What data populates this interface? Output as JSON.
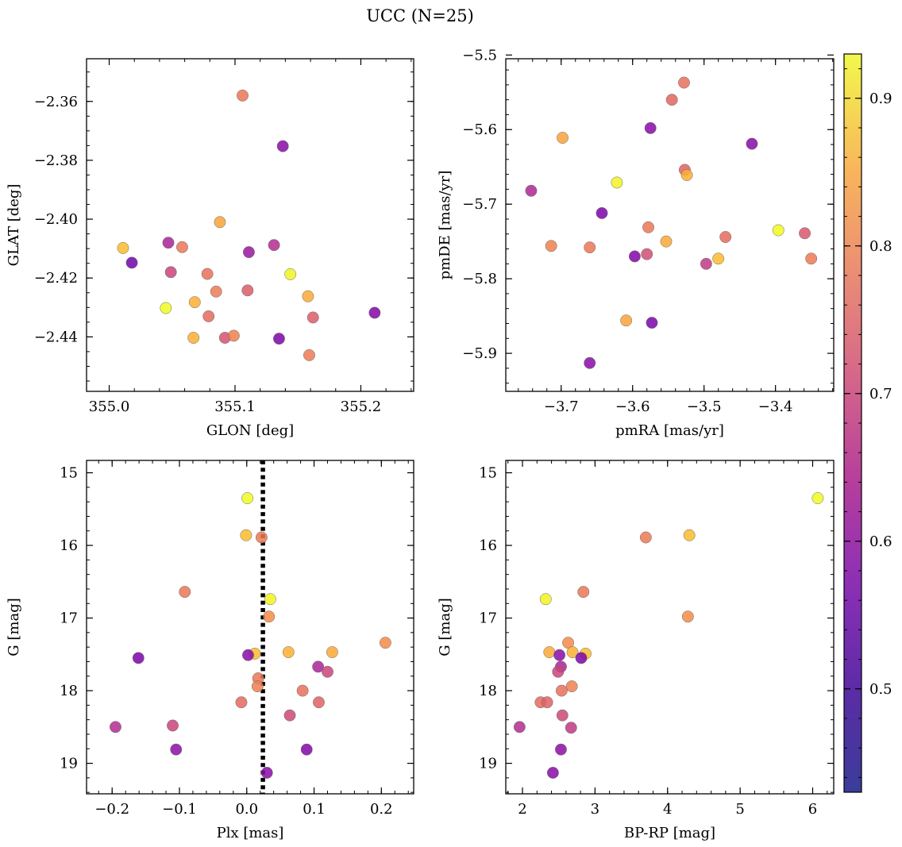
{
  "figure": {
    "title": "UCC (N=25)",
    "colormap": "plasma",
    "colorbar": {
      "vmin": 0.43,
      "vmax": 0.93,
      "ticks": [
        "0.5",
        "0.6",
        "0.7",
        "0.8",
        "0.9"
      ],
      "tick_values": [
        0.5,
        0.6,
        0.7,
        0.8,
        0.9
      ]
    }
  },
  "chart_data": [
    {
      "type": "scatter",
      "panel": "top-left",
      "xlabel": "GLON [deg]",
      "ylabel": "GLAT [deg]",
      "xlim": [
        354.982,
        355.242
      ],
      "ylim": [
        -2.4585,
        -2.3455
      ],
      "y_inverted": false,
      "xticks": [
        355.0,
        355.1,
        355.2
      ],
      "xtick_labels": [
        "355.0",
        "355.1",
        "355.2"
      ],
      "yticks": [
        -2.36,
        -2.38,
        -2.4,
        -2.42,
        -2.44
      ],
      "ytick_labels": [
        "−2.36",
        "−2.38",
        "−2.40",
        "−2.42",
        "−2.44"
      ],
      "x_minor_step": 0.02,
      "y_minor_step": 0.005,
      "points": [
        {
          "x": 355.106,
          "y": -2.358,
          "c": 0.72
        },
        {
          "x": 355.138,
          "y": -2.3752,
          "c": 0.49
        },
        {
          "x": 355.088,
          "y": -2.401,
          "c": 0.8
        },
        {
          "x": 355.011,
          "y": -2.4098,
          "c": 0.84
        },
        {
          "x": 355.018,
          "y": -2.4148,
          "c": 0.45
        },
        {
          "x": 355.047,
          "y": -2.408,
          "c": 0.55
        },
        {
          "x": 355.058,
          "y": -2.4095,
          "c": 0.72
        },
        {
          "x": 355.111,
          "y": -2.4112,
          "c": 0.52
        },
        {
          "x": 355.131,
          "y": -2.4088,
          "c": 0.57
        },
        {
          "x": 355.049,
          "y": -2.418,
          "c": 0.62
        },
        {
          "x": 355.078,
          "y": -2.4186,
          "c": 0.71
        },
        {
          "x": 355.144,
          "y": -2.4187,
          "c": 0.92
        },
        {
          "x": 355.085,
          "y": -2.4246,
          "c": 0.73
        },
        {
          "x": 355.11,
          "y": -2.4242,
          "c": 0.67
        },
        {
          "x": 355.158,
          "y": -2.4262,
          "c": 0.81
        },
        {
          "x": 355.068,
          "y": -2.4282,
          "c": 0.82
        },
        {
          "x": 355.045,
          "y": -2.4302,
          "c": 0.93
        },
        {
          "x": 355.211,
          "y": -2.4318,
          "c": 0.48
        },
        {
          "x": 355.079,
          "y": -2.433,
          "c": 0.7
        },
        {
          "x": 355.162,
          "y": -2.4334,
          "c": 0.67
        },
        {
          "x": 355.067,
          "y": -2.4403,
          "c": 0.82
        },
        {
          "x": 355.092,
          "y": -2.4403,
          "c": 0.65
        },
        {
          "x": 355.099,
          "y": -2.4396,
          "c": 0.74
        },
        {
          "x": 355.135,
          "y": -2.4406,
          "c": 0.47
        },
        {
          "x": 355.159,
          "y": -2.4462,
          "c": 0.73
        }
      ]
    },
    {
      "type": "scatter",
      "panel": "top-right",
      "xlabel": "pmRA [mas/yr]",
      "ylabel": "pmDE [mas/yr]",
      "xlim": [
        -3.7775,
        -3.3185
      ],
      "ylim": [
        -5.951,
        -5.505
      ],
      "y_inverted": false,
      "xticks": [
        -3.7,
        -3.6,
        -3.5,
        -3.4
      ],
      "xtick_labels": [
        "−3.7",
        "−3.6",
        "−3.5",
        "−3.4"
      ],
      "yticks": [
        -5.5,
        -5.6,
        -5.7,
        -5.8,
        -5.9
      ],
      "ytick_labels": [
        "−5.5",
        "−5.6",
        "−5.7",
        "−5.8",
        "−5.9"
      ],
      "x_minor_step": 0.02,
      "y_minor_step": 0.02,
      "points": [
        {
          "x": -3.528,
          "y": -5.537,
          "c": 0.71
        },
        {
          "x": -3.545,
          "y": -5.56,
          "c": 0.69
        },
        {
          "x": -3.575,
          "y": -5.598,
          "c": 0.49
        },
        {
          "x": -3.698,
          "y": -5.611,
          "c": 0.8
        },
        {
          "x": -3.433,
          "y": -5.619,
          "c": 0.49
        },
        {
          "x": -3.527,
          "y": -5.654,
          "c": 0.68
        },
        {
          "x": -3.524,
          "y": -5.661,
          "c": 0.82
        },
        {
          "x": -3.622,
          "y": -5.671,
          "c": 0.92
        },
        {
          "x": -3.742,
          "y": -5.682,
          "c": 0.56
        },
        {
          "x": -3.643,
          "y": -5.712,
          "c": 0.47
        },
        {
          "x": -3.578,
          "y": -5.731,
          "c": 0.72
        },
        {
          "x": -3.396,
          "y": -5.735,
          "c": 0.93
        },
        {
          "x": -3.359,
          "y": -5.739,
          "c": 0.66
        },
        {
          "x": -3.47,
          "y": -5.744,
          "c": 0.7
        },
        {
          "x": -3.553,
          "y": -5.75,
          "c": 0.81
        },
        {
          "x": -3.714,
          "y": -5.756,
          "c": 0.74
        },
        {
          "x": -3.66,
          "y": -5.758,
          "c": 0.72
        },
        {
          "x": -3.58,
          "y": -5.767,
          "c": 0.64
        },
        {
          "x": -3.597,
          "y": -5.77,
          "c": 0.48
        },
        {
          "x": -3.35,
          "y": -5.773,
          "c": 0.73
        },
        {
          "x": -3.48,
          "y": -5.773,
          "c": 0.84
        },
        {
          "x": -3.497,
          "y": -5.78,
          "c": 0.6
        },
        {
          "x": -3.609,
          "y": -5.856,
          "c": 0.8
        },
        {
          "x": -3.573,
          "y": -5.859,
          "c": 0.47
        },
        {
          "x": -3.66,
          "y": -5.913,
          "c": 0.49
        }
      ]
    },
    {
      "type": "scatter",
      "panel": "bottom-left",
      "xlabel": "Plx [mas]",
      "ylabel": "G [mag]",
      "xlim": [
        -0.238,
        0.248
      ],
      "ylim": [
        19.42,
        14.83
      ],
      "y_inverted": true,
      "xticks": [
        -0.2,
        -0.1,
        0.0,
        0.1,
        0.2
      ],
      "xtick_labels": [
        "−0.2",
        "−0.1",
        "0.0",
        "0.1",
        "0.2"
      ],
      "yticks": [
        15,
        16,
        17,
        18,
        19
      ],
      "ytick_labels": [
        "15",
        "16",
        "17",
        "18",
        "19"
      ],
      "x_minor_step": 0.02,
      "y_minor_step": 0.2,
      "vline": {
        "x": 0.024,
        "style": "dotted",
        "color": "#000000"
      },
      "points": [
        {
          "x": 0.001,
          "y": 15.35,
          "c": 0.93
        },
        {
          "x": -0.001,
          "y": 15.86,
          "c": 0.84
        },
        {
          "x": 0.022,
          "y": 15.89,
          "c": 0.73
        },
        {
          "x": -0.092,
          "y": 16.64,
          "c": 0.72
        },
        {
          "x": 0.035,
          "y": 16.74,
          "c": 0.92
        },
        {
          "x": 0.033,
          "y": 16.98,
          "c": 0.76
        },
        {
          "x": 0.206,
          "y": 17.34,
          "c": 0.76
        },
        {
          "x": 0.127,
          "y": 17.47,
          "c": 0.81
        },
        {
          "x": 0.062,
          "y": 17.47,
          "c": 0.82
        },
        {
          "x": 0.012,
          "y": 17.49,
          "c": 0.84
        },
        {
          "x": 0.002,
          "y": 17.51,
          "c": 0.49
        },
        {
          "x": -0.161,
          "y": 17.55,
          "c": 0.47
        },
        {
          "x": 0.106,
          "y": 17.67,
          "c": 0.55
        },
        {
          "x": 0.12,
          "y": 17.74,
          "c": 0.62
        },
        {
          "x": 0.017,
          "y": 17.83,
          "c": 0.72
        },
        {
          "x": 0.016,
          "y": 17.94,
          "c": 0.74
        },
        {
          "x": 0.083,
          "y": 18.0,
          "c": 0.71
        },
        {
          "x": -0.008,
          "y": 18.16,
          "c": 0.7
        },
        {
          "x": 0.107,
          "y": 18.16,
          "c": 0.68
        },
        {
          "x": 0.064,
          "y": 18.34,
          "c": 0.63
        },
        {
          "x": -0.195,
          "y": 18.5,
          "c": 0.57
        },
        {
          "x": -0.11,
          "y": 18.48,
          "c": 0.62
        },
        {
          "x": -0.105,
          "y": 18.81,
          "c": 0.5
        },
        {
          "x": 0.089,
          "y": 18.81,
          "c": 0.48
        },
        {
          "x": 0.03,
          "y": 19.13,
          "c": 0.49
        }
      ]
    },
    {
      "type": "scatter",
      "panel": "bottom-right",
      "xlabel": "BP-RP [mag]",
      "ylabel": "G [mag]",
      "xlim": [
        1.77,
        6.29
      ],
      "ylim": [
        19.42,
        14.83
      ],
      "y_inverted": true,
      "xticks": [
        2,
        3,
        4,
        5,
        6
      ],
      "xtick_labels": [
        "2",
        "3",
        "4",
        "5",
        "6"
      ],
      "yticks": [
        15,
        16,
        17,
        18,
        19
      ],
      "ytick_labels": [
        "15",
        "16",
        "17",
        "18",
        "19"
      ],
      "x_minor_step": 0.2,
      "y_minor_step": 0.2,
      "points": [
        {
          "x": 6.07,
          "y": 15.35,
          "c": 0.93
        },
        {
          "x": 4.3,
          "y": 15.86,
          "c": 0.84
        },
        {
          "x": 3.7,
          "y": 15.89,
          "c": 0.73
        },
        {
          "x": 2.84,
          "y": 16.64,
          "c": 0.72
        },
        {
          "x": 2.32,
          "y": 16.74,
          "c": 0.92
        },
        {
          "x": 4.28,
          "y": 16.98,
          "c": 0.76
        },
        {
          "x": 2.63,
          "y": 17.34,
          "c": 0.76
        },
        {
          "x": 2.37,
          "y": 17.47,
          "c": 0.81
        },
        {
          "x": 2.69,
          "y": 17.47,
          "c": 0.82
        },
        {
          "x": 2.87,
          "y": 17.49,
          "c": 0.84
        },
        {
          "x": 2.51,
          "y": 17.51,
          "c": 0.49
        },
        {
          "x": 2.81,
          "y": 17.55,
          "c": 0.47
        },
        {
          "x": 2.53,
          "y": 17.67,
          "c": 0.55
        },
        {
          "x": 2.49,
          "y": 17.74,
          "c": 0.62
        },
        {
          "x": 2.68,
          "y": 17.94,
          "c": 0.74
        },
        {
          "x": 2.54,
          "y": 18.0,
          "c": 0.71
        },
        {
          "x": 2.25,
          "y": 18.16,
          "c": 0.7
        },
        {
          "x": 2.34,
          "y": 18.16,
          "c": 0.68
        },
        {
          "x": 2.55,
          "y": 18.34,
          "c": 0.63
        },
        {
          "x": 1.96,
          "y": 18.5,
          "c": 0.57
        },
        {
          "x": 2.67,
          "y": 18.51,
          "c": 0.6
        },
        {
          "x": 2.53,
          "y": 18.81,
          "c": 0.5
        },
        {
          "x": 2.42,
          "y": 19.13,
          "c": 0.49
        }
      ]
    }
  ]
}
